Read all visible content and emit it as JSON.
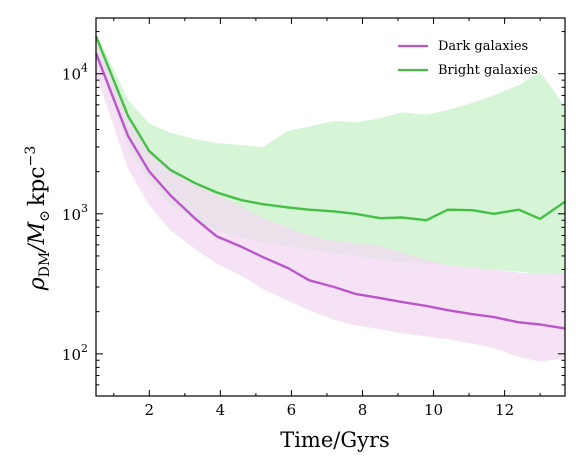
{
  "chart_data": {
    "type": "line",
    "xlabel": "Time/Gyrs",
    "ylabel": {
      "rho": "ρ",
      "rho_sub": "DM",
      "slash_M": "/M",
      "sun": "⊙",
      "unit": "kpc",
      "unit_sup": "−3"
    },
    "xlim": [
      0.5,
      13.7
    ],
    "ylim": [
      50,
      25000
    ],
    "yscale": "log",
    "x_ticks": [
      2,
      4,
      6,
      8,
      10,
      12
    ],
    "x_tick_labels": [
      "2",
      "4",
      "6",
      "8",
      "10",
      "12"
    ],
    "y_ticks": [
      100,
      1000,
      10000
    ],
    "y_tick_labels": [
      {
        "base": "10",
        "exp": "2"
      },
      {
        "base": "10",
        "exp": "3"
      },
      {
        "base": "10",
        "exp": "4"
      }
    ],
    "legend_position": "top-right",
    "series": [
      {
        "name": "Dark galaxies",
        "color": "#bb55cc",
        "band_color": "#f1d9f1",
        "x": [
          0.5,
          1.4,
          2.0,
          2.6,
          3.3,
          3.9,
          4.6,
          5.2,
          5.9,
          6.5,
          7.2,
          7.8,
          8.5,
          9.1,
          9.8,
          10.4,
          11.1,
          11.7,
          12.4,
          13.0,
          13.7
        ],
        "y": [
          14000,
          3600,
          2000,
          1350,
          920,
          690,
          580,
          490,
          410,
          335,
          300,
          268,
          250,
          235,
          220,
          205,
          192,
          183,
          168,
          162,
          152
        ],
        "lower": [
          10000,
          2100,
          1150,
          760,
          560,
          440,
          360,
          290,
          240,
          205,
          175,
          160,
          150,
          140,
          133,
          127,
          118,
          110,
          95,
          88,
          93
        ],
        "upper": [
          17500,
          4800,
          2900,
          2150,
          1650,
          1380,
          1120,
          930,
          800,
          700,
          640,
          620,
          590,
          530,
          470,
          430,
          410,
          400,
          380,
          370,
          380
        ]
      },
      {
        "name": "Bright galaxies",
        "color": "#44c044",
        "band_color": "#d6f5d6",
        "x": [
          0.5,
          1.4,
          2.0,
          2.6,
          3.3,
          3.9,
          4.6,
          5.2,
          5.9,
          6.5,
          7.2,
          7.8,
          8.5,
          9.1,
          9.8,
          10.4,
          11.1,
          11.7,
          12.4,
          13.0,
          13.7
        ],
        "y": [
          18500,
          5000,
          2800,
          2050,
          1650,
          1420,
          1250,
          1170,
          1110,
          1070,
          1040,
          1000,
          930,
          940,
          900,
          1070,
          1060,
          1000,
          1070,
          920,
          1220
        ],
        "lower": [
          14000,
          3000,
          1700,
          1150,
          900,
          760,
          680,
          620,
          590,
          560,
          520,
          500,
          470,
          450,
          440,
          430,
          410,
          400,
          385,
          370,
          375
        ],
        "upper": [
          19500,
          6500,
          4400,
          3800,
          3400,
          3200,
          3100,
          3000,
          3900,
          4200,
          4600,
          4500,
          4800,
          5300,
          5100,
          5500,
          6200,
          7000,
          8300,
          10300,
          5800
        ]
      }
    ]
  }
}
